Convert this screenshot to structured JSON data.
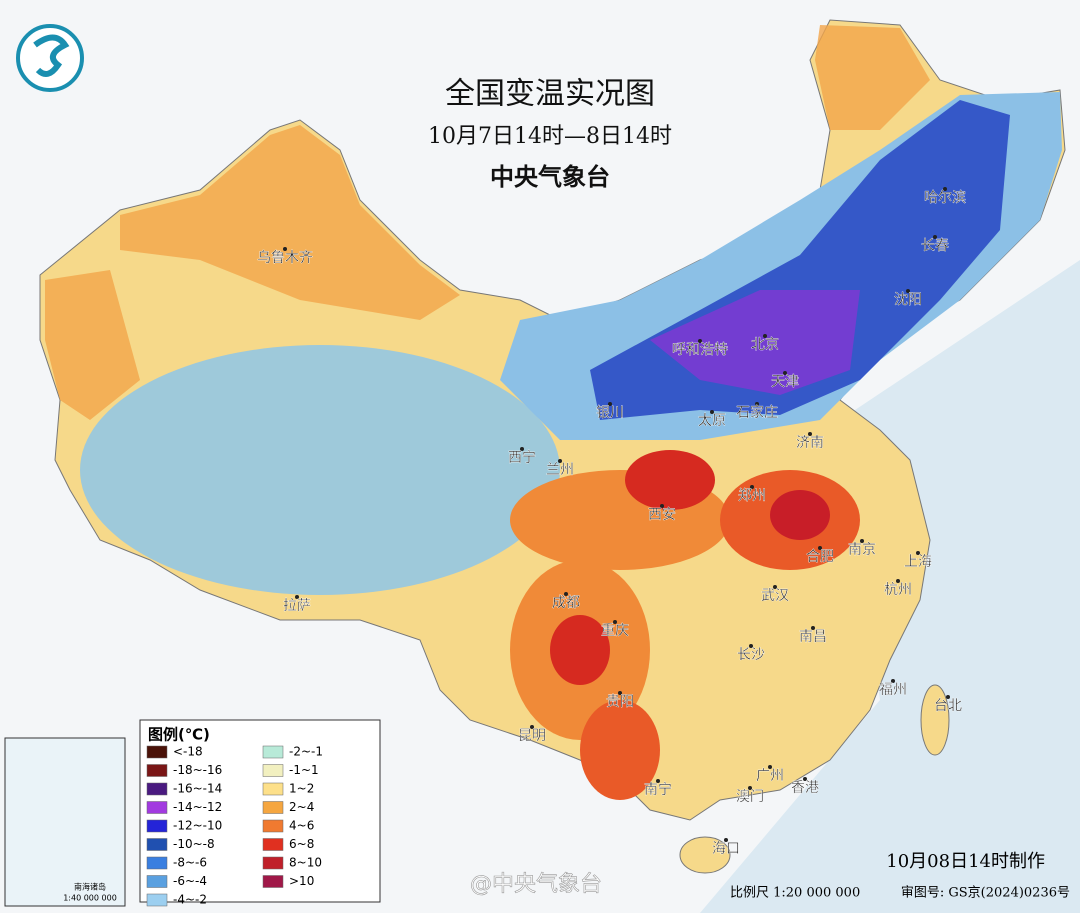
{
  "header": {
    "title": "全国变温实况图",
    "subtitle": "10月7日14时—8日14时",
    "agency": "中央气象台"
  },
  "cities": [
    "乌鲁木齐",
    "哈尔滨",
    "长春",
    "沈阳",
    "呼和浩特",
    "北京",
    "天津",
    "银川",
    "太原",
    "石家庄",
    "济南",
    "西宁",
    "兰州",
    "西安",
    "郑州",
    "合肥",
    "南京",
    "上海",
    "杭州",
    "拉萨",
    "成都",
    "重庆",
    "武汉",
    "南昌",
    "长沙",
    "福州",
    "台北",
    "贵阳",
    "昆明",
    "南宁",
    "广州",
    "香港",
    "澳门",
    "海口"
  ],
  "legend": {
    "title": "图例(℃)",
    "items": [
      {
        "label": "<-18",
        "color": "#4a1208"
      },
      {
        "label": "-18~-16",
        "color": "#7a1616"
      },
      {
        "label": "-16~-14",
        "color": "#4a1a80"
      },
      {
        "label": "-14~-12",
        "color": "#a23ae0"
      },
      {
        "label": "-12~-10",
        "color": "#2424d8"
      },
      {
        "label": "-10~-8",
        "color": "#2050b0"
      },
      {
        "label": "-8~-6",
        "color": "#3a7fe0"
      },
      {
        "label": "-6~-4",
        "color": "#5aa0e0"
      },
      {
        "label": "-4~-2",
        "color": "#9ccff0"
      },
      {
        "label": "-2~-1",
        "color": "#b8ead8"
      },
      {
        "label": "-1~1",
        "color": "#f2f0c0"
      },
      {
        "label": "1~2",
        "color": "#fde08a"
      },
      {
        "label": "2~4",
        "color": "#f5a640"
      },
      {
        "label": "4~6",
        "color": "#f07a30"
      },
      {
        "label": "6~8",
        "color": "#e03020"
      },
      {
        "label": "8~10",
        "color": "#c0202a"
      },
      {
        "label": ">10",
        "color": "#a01848"
      }
    ]
  },
  "inset": {
    "title": "南海诸岛",
    "scale": "1:40 000 000"
  },
  "footer": {
    "made": "10月08日14时制作",
    "scale": "比例尺 1:20 000 000",
    "approval": "审图号: GS京(2024)0236号",
    "watermark": "@中央气象台"
  }
}
